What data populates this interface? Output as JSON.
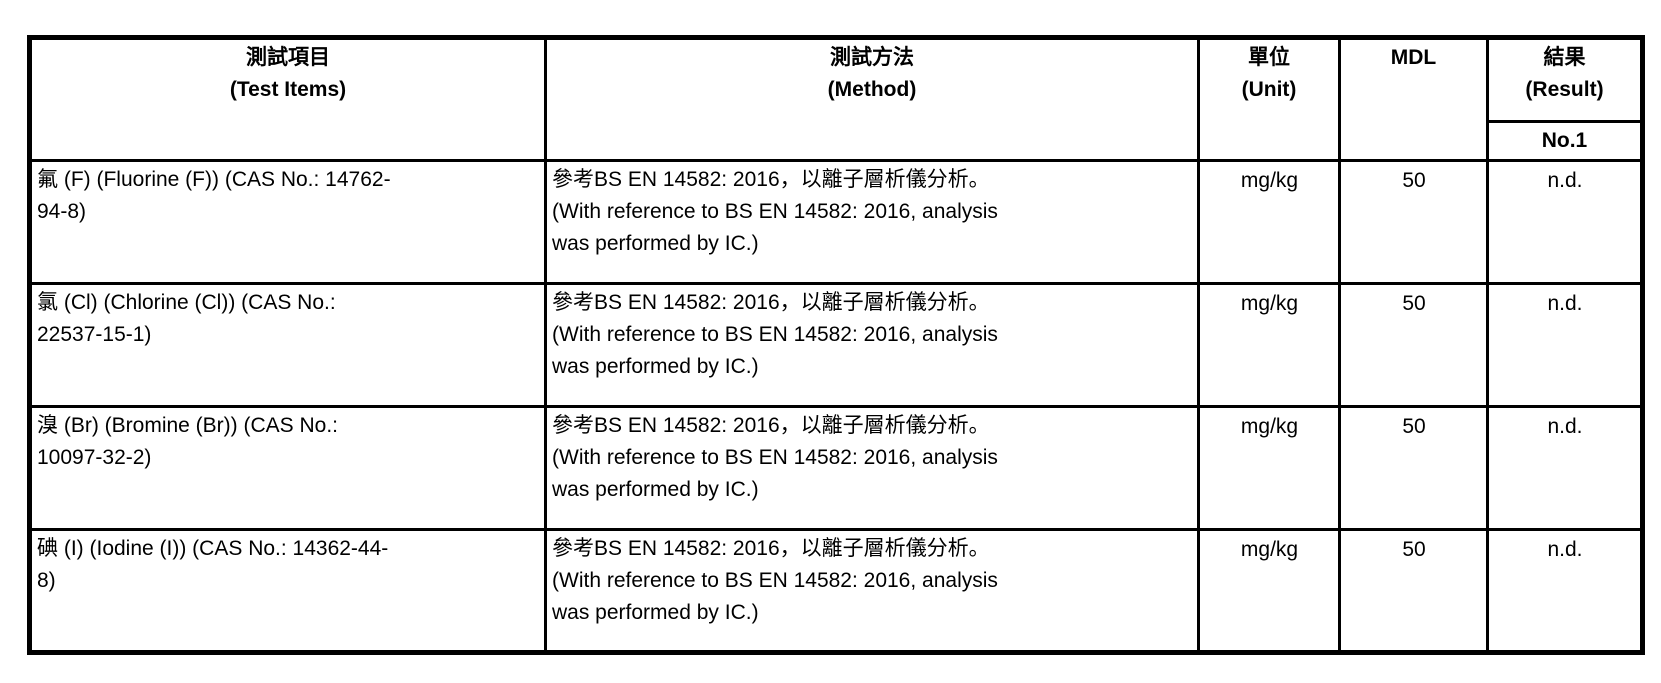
{
  "table": {
    "headers": {
      "test_items_zh": "測試項目",
      "test_items_en": "(Test Items)",
      "method_zh": "測試方法",
      "method_en": "(Method)",
      "unit_zh": "單位",
      "unit_en": "(Unit)",
      "mdl": "MDL",
      "result_zh": "結果",
      "result_en": "(Result)",
      "result_sub": "No.1"
    },
    "rows": [
      {
        "item_lines": [
          "氟 (F) (Fluorine (F)) (CAS No.: 14762-",
          "94-8)"
        ],
        "method_lines": [
          "參考BS EN 14582: 2016，以離子層析儀分析。",
          "(With reference to BS EN 14582: 2016, analysis",
          "was performed by IC.)"
        ],
        "unit": "mg/kg",
        "mdl": "50",
        "result": "n.d."
      },
      {
        "item_lines": [
          "氯 (Cl) (Chlorine (Cl)) (CAS No.:",
          "22537-15-1)"
        ],
        "method_lines": [
          "參考BS EN 14582: 2016，以離子層析儀分析。",
          "(With reference to BS EN 14582: 2016, analysis",
          "was performed by IC.)"
        ],
        "unit": "mg/kg",
        "mdl": "50",
        "result": "n.d."
      },
      {
        "item_lines": [
          "溴 (Br) (Bromine (Br)) (CAS No.:",
          "10097-32-2)"
        ],
        "method_lines": [
          "參考BS EN 14582: 2016，以離子層析儀分析。",
          "(With reference to BS EN 14582: 2016, analysis",
          "was performed by IC.)"
        ],
        "unit": "mg/kg",
        "mdl": "50",
        "result": "n.d."
      },
      {
        "item_lines": [
          "碘 (I) (Iodine (I)) (CAS No.: 14362-44-",
          "8)"
        ],
        "method_lines": [
          "參考BS EN 14582: 2016，以離子層析儀分析。",
          "(With reference to BS EN 14582: 2016, analysis",
          "was performed by IC.)"
        ],
        "unit": "mg/kg",
        "mdl": "50",
        "result": "n.d."
      }
    ]
  }
}
